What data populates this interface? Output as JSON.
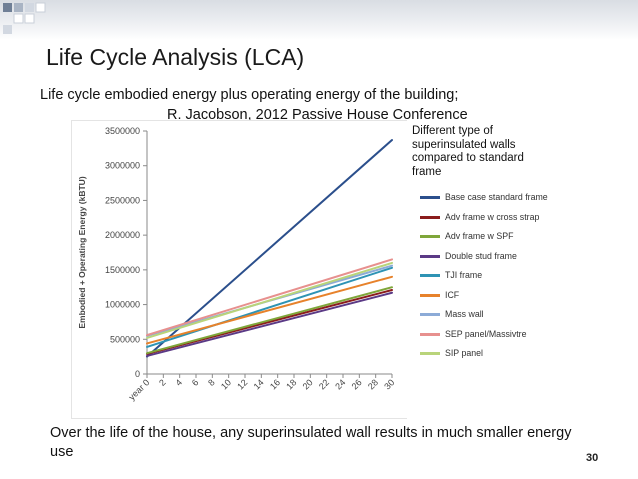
{
  "slide": {
    "title": "Life Cycle Analysis (LCA)",
    "subtitle_line1": "Life cycle embodied energy plus operating energy of the building;",
    "subtitle_line2": "R. Jacobson, 2012  Passive House Conference",
    "legend_note": "Different type of superinsulated walls compared to standard frame",
    "footer": "Over the life of the house, any superinsulated wall results in much smaller energy use",
    "page_number": "30"
  },
  "chart_data": {
    "type": "line",
    "ylabel": "Embodied + Operating Energy (kBTU)",
    "xlabel": "",
    "x_tick_labels": [
      "year 0",
      "2",
      "4",
      "6",
      "8",
      "10",
      "12",
      "14",
      "16",
      "18",
      "20",
      "22",
      "24",
      "26",
      "28",
      "30"
    ],
    "x": [
      0,
      30
    ],
    "ylim": [
      0,
      3500000
    ],
    "y_ticks": [
      0,
      500000,
      1000000,
      1500000,
      2000000,
      2500000,
      3000000,
      3500000
    ],
    "y_tick_labels": [
      "0",
      "500000",
      "1000000",
      "1500000",
      "2000000",
      "2500000",
      "3000000",
      "3500000"
    ],
    "grid": false,
    "legend_position": "right",
    "series": [
      {
        "name": "Base case standard frame",
        "color": "#2b4f8c",
        "values": [
          250000,
          3370000
        ]
      },
      {
        "name": "Adv frame w cross strap",
        "color": "#8b1c1c",
        "values": [
          290000,
          1210000
        ]
      },
      {
        "name": "Adv frame w SPF",
        "color": "#7fa63a",
        "values": [
          300000,
          1250000
        ]
      },
      {
        "name": "Double stud frame",
        "color": "#5b3a86",
        "values": [
          260000,
          1170000
        ]
      },
      {
        "name": "TJI frame",
        "color": "#2e93b4",
        "values": [
          390000,
          1530000
        ]
      },
      {
        "name": "ICF",
        "color": "#e7822b",
        "values": [
          440000,
          1400000
        ]
      },
      {
        "name": "Mass wall",
        "color": "#8cabd7",
        "values": [
          550000,
          1560000
        ]
      },
      {
        "name": "SEP panel/Massivtre",
        "color": "#e7908e",
        "values": [
          560000,
          1650000
        ]
      },
      {
        "name": "SIP panel",
        "color": "#b9d47a",
        "values": [
          520000,
          1600000
        ]
      }
    ]
  }
}
